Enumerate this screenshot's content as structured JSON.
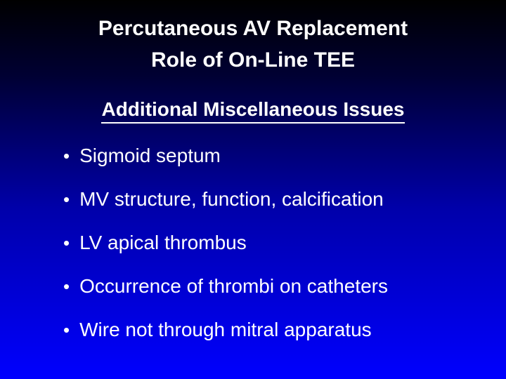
{
  "title": {
    "line1": "Percutaneous AV Replacement",
    "line2": "Role of On-Line TEE"
  },
  "subtitle": "Additional Miscellaneous Issues",
  "bullets": [
    "Sigmoid septum",
    "MV structure, function, calcification",
    "LV apical thrombus",
    "Occurrence of thrombi on catheters",
    "Wire not through mitral apparatus"
  ],
  "colors": {
    "text": "#ffffff",
    "bg_top": "#000000",
    "bg_bottom": "#0000ff"
  },
  "fonts": {
    "title_size": 30,
    "subtitle_size": 28,
    "bullet_size": 28
  }
}
